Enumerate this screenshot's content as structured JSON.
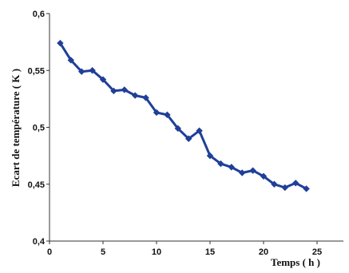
{
  "chart_data": {
    "type": "line",
    "xlabel": "Temps ( h )",
    "ylabel": "Ecart de température ( K )",
    "xlim": [
      0,
      30
    ],
    "ylim": [
      0.4,
      0.6
    ],
    "xticks": [
      "0",
      "5",
      "10",
      "15",
      "20",
      "25"
    ],
    "xtick_values": [
      0,
      5,
      10,
      15,
      20,
      25
    ],
    "yticks": [
      "0,4",
      "0,45",
      "0,5",
      "0,55",
      "0,6"
    ],
    "ytick_values": [
      0.4,
      0.45,
      0.5,
      0.55,
      0.6
    ],
    "grid": false,
    "legend": "none",
    "series": [
      {
        "color": "#1f3f99",
        "marker": "diamond",
        "x": [
          1,
          2,
          3,
          4,
          5,
          6,
          7,
          8,
          9,
          10,
          11,
          12,
          13,
          14,
          15,
          16,
          17,
          18,
          19,
          20,
          21,
          22,
          23,
          24
        ],
        "y": [
          0.574,
          0.559,
          0.549,
          0.55,
          0.542,
          0.532,
          0.533,
          0.528,
          0.526,
          0.513,
          0.511,
          0.499,
          0.49,
          0.497,
          0.475,
          0.468,
          0.465,
          0.46,
          0.462,
          0.457,
          0.45,
          0.447,
          0.451,
          0.446
        ]
      }
    ]
  }
}
